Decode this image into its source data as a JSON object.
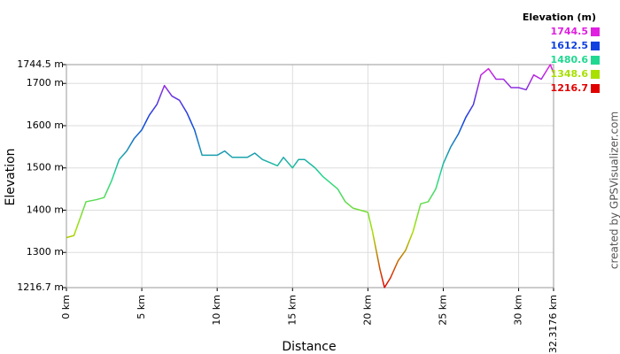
{
  "chart_data": {
    "type": "line",
    "x_label": "Distance",
    "y_label": "Elevation",
    "credit": "created by GPSVisualizer.com",
    "xlim": [
      0,
      32.3176
    ],
    "ylim": [
      1216.7,
      1744.5
    ],
    "xticks": [
      {
        "value": 0,
        "label": "0 km"
      },
      {
        "value": 5,
        "label": "5 km"
      },
      {
        "value": 10,
        "label": "10 km"
      },
      {
        "value": 15,
        "label": "15 km"
      },
      {
        "value": 20,
        "label": "20 km"
      },
      {
        "value": 25,
        "label": "25 km"
      },
      {
        "value": 30,
        "label": "30 km"
      },
      {
        "value": 32.3176,
        "label": "32.3176 km"
      }
    ],
    "yticks": [
      {
        "value": 1216.7,
        "label": "1216.7 m"
      },
      {
        "value": 1300,
        "label": "1300 m"
      },
      {
        "value": 1400,
        "label": "1400 m"
      },
      {
        "value": 1500,
        "label": "1500 m"
      },
      {
        "value": 1600,
        "label": "1600 m"
      },
      {
        "value": 1700,
        "label": "1700 m"
      },
      {
        "value": 1744.5,
        "label": "1744.5 m"
      }
    ],
    "grid": true,
    "legend": {
      "title": "Elevation (m)",
      "position": "top-right",
      "entries": [
        {
          "value": 1744.5,
          "color": "#e020e0"
        },
        {
          "value": 1612.5,
          "color": "#1040e0"
        },
        {
          "value": 1480.6,
          "color": "#20d890"
        },
        {
          "value": 1348.6,
          "color": "#a8e000"
        },
        {
          "value": 1216.7,
          "color": "#e00000"
        }
      ]
    },
    "x": [
      0,
      0.5,
      1,
      1.3,
      2,
      2.5,
      3,
      3.5,
      4,
      4.5,
      5,
      5.5,
      6,
      6.5,
      7,
      7.5,
      8,
      8.5,
      9,
      10,
      10.5,
      11,
      12,
      12.5,
      13,
      14,
      14.4,
      15,
      15.4,
      15.8,
      16.5,
      17,
      18,
      18.5,
      19,
      20,
      20.3,
      20.8,
      21.1,
      21.5,
      22,
      22.5,
      23,
      23.5,
      24,
      24.5,
      25,
      25.5,
      26,
      26.5,
      27,
      27.5,
      28,
      28.5,
      29,
      29.5,
      30,
      30.5,
      31,
      31.5,
      32.1,
      32.3176
    ],
    "values": [
      1335,
      1340,
      1390,
      1420,
      1425,
      1430,
      1470,
      1520,
      1540,
      1570,
      1590,
      1625,
      1650,
      1695,
      1670,
      1660,
      1630,
      1590,
      1530,
      1530,
      1540,
      1525,
      1525,
      1535,
      1520,
      1505,
      1525,
      1500,
      1520,
      1520,
      1500,
      1480,
      1450,
      1420,
      1405,
      1395,
      1350,
      1260,
      1217,
      1240,
      1280,
      1305,
      1350,
      1415,
      1420,
      1450,
      1510,
      1550,
      1580,
      1620,
      1650,
      1720,
      1735,
      1710,
      1710,
      1690,
      1690,
      1685,
      1720,
      1710,
      1744.5,
      1725
    ]
  }
}
